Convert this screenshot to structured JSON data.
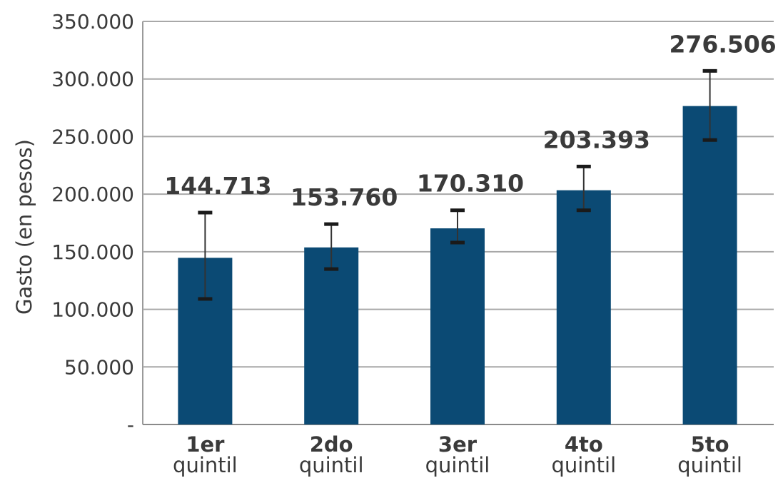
{
  "chart_data": {
    "type": "bar",
    "ylabel": "Gasto (en pesos)",
    "ylim": [
      0,
      350000
    ],
    "yticks": [
      {
        "value": 0,
        "label": "-"
      },
      {
        "value": 50000,
        "label": "50.000"
      },
      {
        "value": 100000,
        "label": "100.000"
      },
      {
        "value": 150000,
        "label": "150.000"
      },
      {
        "value": 200000,
        "label": "200.000"
      },
      {
        "value": 250000,
        "label": "250.000"
      },
      {
        "value": 300000,
        "label": "300.000"
      },
      {
        "value": 350000,
        "label": "350.000"
      }
    ],
    "grid": true,
    "bar_color": "#0b4a74",
    "categories": [
      {
        "main": "1er",
        "sub": "quintil"
      },
      {
        "main": "2do",
        "sub": "quintil"
      },
      {
        "main": "3er",
        "sub": "quintil"
      },
      {
        "main": "4to",
        "sub": "quintil"
      },
      {
        "main": "5to",
        "sub": "quintil"
      }
    ],
    "values": [
      144713,
      153760,
      170310,
      203393,
      276506
    ],
    "value_labels": [
      "144.713",
      "153.760",
      "170.310",
      "203.393",
      "276.506"
    ],
    "error_bars": [
      {
        "low": 109000,
        "high": 184000
      },
      {
        "low": 135000,
        "high": 174000
      },
      {
        "low": 158000,
        "high": 186000
      },
      {
        "low": 186000,
        "high": 224000
      },
      {
        "low": 247000,
        "high": 307000
      }
    ]
  }
}
